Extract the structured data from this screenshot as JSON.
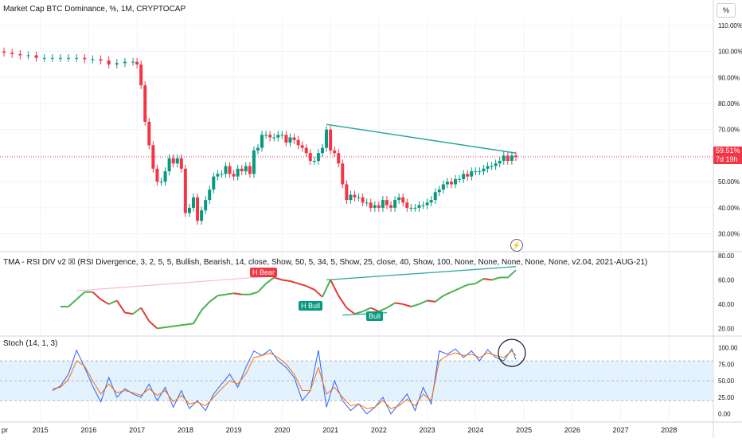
{
  "header": {
    "title": "Market Cap BTC Dominance, %, 1M, CRYPTOCAP",
    "scale_button": "%"
  },
  "price_axis": {
    "labels": [
      "110.00%",
      "100.00%",
      "90.00%",
      "80.00%",
      "70.00%",
      "60.00%",
      "50.00%",
      "40.00%",
      "30.00%"
    ],
    "current_value": "59.51%",
    "countdown": "7d 19h"
  },
  "rsi_pane": {
    "title": "TMA - RSI DIV v2 ☒ (RSI Divergence, 3, 2, 5, 5, Bullish, Bearish, 14, close, Show, 50, 5, 34, 5, Show, 25, close, 40, Show, 100, None, None, None, None, None, v2.04, 2021-AUG-21)",
    "axis_labels": [
      "80.00",
      "60.00",
      "40.00",
      "20.00"
    ],
    "labels": [
      "H Bear",
      "H Bull",
      "Bull"
    ]
  },
  "stoch_pane": {
    "title": "Stoch (14, 1, 3)",
    "axis_labels": [
      "100.00",
      "75.00",
      "50.00",
      "25.00",
      "0.00"
    ]
  },
  "time_axis": {
    "labels": [
      "pr",
      "2015",
      "2016",
      "2017",
      "2018",
      "2019",
      "2020",
      "2021",
      "2022",
      "2023",
      "2024",
      "2025",
      "2026",
      "2027",
      "2028"
    ]
  },
  "colors": {
    "up": "#089981",
    "down": "#f23645",
    "trendline": "#26a69a",
    "rsi_up": "#4caf50",
    "rsi_down": "#e53935",
    "stoch_k": "#2962ff",
    "stoch_d": "#ff6d00",
    "stoch_band": "#e3f2fd"
  },
  "chart_data": [
    {
      "type": "candlestick",
      "title": "Market Cap BTC Dominance, %, 1M, CRYPTOCAP",
      "ylim": [
        25,
        113
      ],
      "unit": "%",
      "price_line": 59.51,
      "x_range": [
        "2014-03",
        "2028-12"
      ],
      "x": [
        "2014-04",
        "2014-06",
        "2014-08",
        "2014-10",
        "2014-12",
        "2015-02",
        "2015-04",
        "2015-06",
        "2015-08",
        "2015-10",
        "2015-12",
        "2016-02",
        "2016-04",
        "2016-06",
        "2016-08",
        "2016-10",
        "2016-12",
        "2017-01",
        "2017-02",
        "2017-03",
        "2017-04",
        "2017-05",
        "2017-06",
        "2017-07",
        "2017-08",
        "2017-09",
        "2017-10",
        "2017-11",
        "2017-12",
        "2018-01",
        "2018-02",
        "2018-03",
        "2018-04",
        "2018-05",
        "2018-06",
        "2018-07",
        "2018-08",
        "2018-09",
        "2018-10",
        "2018-11",
        "2018-12",
        "2019-01",
        "2019-02",
        "2019-03",
        "2019-04",
        "2019-05",
        "2019-06",
        "2019-07",
        "2019-08",
        "2019-09",
        "2019-10",
        "2019-11",
        "2019-12",
        "2020-01",
        "2020-02",
        "2020-03",
        "2020-04",
        "2020-05",
        "2020-06",
        "2020-07",
        "2020-08",
        "2020-09",
        "2020-10",
        "2020-11",
        "2020-12",
        "2021-01",
        "2021-02",
        "2021-03",
        "2021-04",
        "2021-05",
        "2021-06",
        "2021-07",
        "2021-08",
        "2021-09",
        "2021-10",
        "2021-11",
        "2021-12",
        "2022-01",
        "2022-02",
        "2022-03",
        "2022-04",
        "2022-05",
        "2022-06",
        "2022-07",
        "2022-08",
        "2022-09",
        "2022-10",
        "2022-11",
        "2022-12",
        "2023-01",
        "2023-02",
        "2023-03",
        "2023-04",
        "2023-05",
        "2023-06",
        "2023-07",
        "2023-08",
        "2023-09",
        "2023-10",
        "2023-11",
        "2023-12",
        "2024-01",
        "2024-02",
        "2024-03",
        "2024-04",
        "2024-05",
        "2024-06",
        "2024-07",
        "2024-08",
        "2024-09",
        "2024-10",
        "2024-11"
      ],
      "close": [
        99.5,
        99,
        98.5,
        98.5,
        97.5,
        97.5,
        97.5,
        97.5,
        97.5,
        97.5,
        97,
        97,
        96.5,
        95,
        95.5,
        96,
        96,
        95,
        87,
        73,
        64,
        55,
        50,
        50,
        54,
        59,
        57,
        59,
        55,
        38,
        40,
        44,
        35,
        39,
        43,
        47,
        52,
        53,
        53,
        56,
        53,
        52,
        55,
        54,
        56,
        53,
        62,
        63,
        68,
        68,
        67,
        67,
        68,
        68,
        65,
        67,
        66,
        64,
        63,
        61,
        58,
        58,
        61,
        63,
        70,
        62,
        61,
        57,
        49,
        43,
        45,
        44,
        44,
        42,
        42,
        40,
        41,
        40,
        43,
        41,
        40,
        43,
        44,
        42,
        40,
        40,
        40,
        41,
        41,
        42,
        43,
        46,
        47,
        49,
        50,
        49,
        51,
        51,
        53,
        52,
        54,
        54,
        54,
        55,
        56,
        56,
        57,
        58,
        60,
        58,
        60,
        59.5
      ],
      "open": [
        100,
        99.5,
        99,
        98.5,
        98.5,
        97.5,
        97.5,
        97.5,
        97.5,
        97.5,
        97.5,
        97,
        97,
        96.5,
        95,
        95.5,
        96,
        96,
        95,
        87,
        73,
        64,
        55,
        50,
        50,
        54,
        59,
        57,
        59,
        55,
        38,
        40,
        44,
        35,
        39,
        43,
        47,
        52,
        53,
        53,
        56,
        53,
        52,
        55,
        54,
        56,
        53,
        62,
        63,
        68,
        68,
        67,
        67,
        68,
        68,
        65,
        67,
        66,
        64,
        63,
        61,
        58,
        58,
        61,
        63,
        70,
        62,
        61,
        57,
        49,
        43,
        45,
        44,
        44,
        42,
        42,
        40,
        41,
        40,
        43,
        41,
        40,
        43,
        44,
        42,
        40,
        40,
        40,
        41,
        41,
        42,
        43,
        46,
        47,
        49,
        50,
        49,
        51,
        51,
        53,
        52,
        54,
        54,
        54,
        55,
        56,
        56,
        57,
        58,
        60,
        58,
        60
      ],
      "annotations": [
        {
          "type": "trendline",
          "from": [
            "2020-12",
            72
          ],
          "to": [
            "2024-11",
            61
          ]
        }
      ]
    },
    {
      "type": "line",
      "title": "TMA - RSI DIV v2",
      "ylim": [
        15,
        82
      ],
      "x_range": [
        "2014-03",
        "2028-12"
      ],
      "x": [
        "2015-06",
        "2015-08",
        "2015-10",
        "2015-12",
        "2016-02",
        "2016-04",
        "2016-06",
        "2016-08",
        "2016-10",
        "2016-12",
        "2017-02",
        "2017-04",
        "2017-06",
        "2018-03",
        "2018-05",
        "2018-07",
        "2018-09",
        "2018-11",
        "2019-01",
        "2019-03",
        "2019-05",
        "2019-07",
        "2019-09",
        "2019-11",
        "2020-01",
        "2020-03",
        "2020-05",
        "2020-07",
        "2020-09",
        "2020-11",
        "2021-01",
        "2021-03",
        "2021-05",
        "2021-07",
        "2021-09",
        "2021-11",
        "2022-01",
        "2022-03",
        "2022-05",
        "2022-07",
        "2022-09",
        "2022-11",
        "2023-01",
        "2023-03",
        "2023-05",
        "2023-07",
        "2023-09",
        "2023-11",
        "2024-01",
        "2024-03",
        "2024-05",
        "2024-07",
        "2024-09",
        "2024-11"
      ],
      "y": [
        38,
        38,
        44,
        50,
        50,
        44,
        40,
        43,
        33,
        32,
        37,
        26,
        20,
        24,
        35,
        42,
        47,
        48,
        49,
        48,
        48,
        50,
        57,
        62,
        60,
        59,
        57,
        55,
        52,
        46,
        60,
        47,
        37,
        32,
        34,
        37,
        34,
        37,
        41,
        40,
        38,
        40,
        43,
        42,
        47,
        50,
        53,
        56,
        57,
        61,
        60,
        62,
        62,
        68
      ],
      "trendlines": [
        {
          "from": [
            "2020-12",
            60
          ],
          "to": [
            "2024-11",
            71
          ]
        },
        {
          "from": [
            "2015-10",
            51
          ],
          "to": [
            "2019-10",
            63
          ]
        },
        {
          "from": [
            "2021-04",
            31
          ],
          "to": [
            "2022-03",
            33
          ]
        }
      ],
      "labels": [
        {
          "text": "H Bear",
          "x": "2019-08",
          "y": 70
        },
        {
          "text": "H Bull",
          "x": "2020-09",
          "y": 35
        },
        {
          "text": "Bull",
          "x": "2022-03",
          "y": 27
        }
      ]
    },
    {
      "type": "line",
      "title": "Stoch (14, 1, 3)",
      "ylim": [
        -10,
        115
      ],
      "bands": [
        80,
        50,
        20
      ],
      "x_range": [
        "2014-03",
        "2028-12"
      ],
      "x": [
        "2015-04",
        "2015-06",
        "2015-08",
        "2015-10",
        "2015-12",
        "2016-02",
        "2016-04",
        "2016-06",
        "2016-08",
        "2016-10",
        "2016-12",
        "2017-02",
        "2017-04",
        "2017-06",
        "2017-08",
        "2017-10",
        "2017-12",
        "2018-02",
        "2018-04",
        "2018-06",
        "2018-08",
        "2018-10",
        "2018-12",
        "2019-02",
        "2019-04",
        "2019-06",
        "2019-08",
        "2019-10",
        "2019-12",
        "2020-02",
        "2020-04",
        "2020-06",
        "2020-08",
        "2020-10",
        "2020-12",
        "2021-02",
        "2021-04",
        "2021-06",
        "2021-08",
        "2021-10",
        "2021-12",
        "2022-02",
        "2022-04",
        "2022-06",
        "2022-08",
        "2022-10",
        "2022-12",
        "2023-02",
        "2023-04",
        "2023-06",
        "2023-08",
        "2023-10",
        "2023-12",
        "2024-02",
        "2024-04",
        "2024-06",
        "2024-08",
        "2024-10",
        "2024-11"
      ],
      "series": [
        {
          "values": [
            35,
            42,
            60,
            96,
            70,
            42,
            18,
            55,
            25,
            38,
            30,
            25,
            45,
            20,
            40,
            10,
            35,
            8,
            20,
            5,
            30,
            45,
            60,
            40,
            70,
            95,
            88,
            97,
            80,
            70,
            55,
            20,
            35,
            96,
            10,
            50,
            20,
            5,
            15,
            0,
            10,
            25,
            0,
            15,
            30,
            5,
            40,
            15,
            95,
            90,
            98,
            85,
            95,
            80,
            97,
            85,
            80,
            98,
            82
          ]
        },
        {
          "values": [
            38,
            40,
            52,
            80,
            72,
            50,
            30,
            45,
            32,
            35,
            32,
            28,
            38,
            28,
            35,
            18,
            28,
            15,
            18,
            12,
            25,
            38,
            50,
            45,
            60,
            85,
            88,
            92,
            85,
            75,
            60,
            35,
            35,
            70,
            30,
            40,
            25,
            12,
            15,
            8,
            10,
            20,
            8,
            12,
            22,
            12,
            30,
            20,
            80,
            88,
            92,
            88,
            90,
            85,
            92,
            88,
            85,
            95,
            88
          ]
        }
      ]
    }
  ]
}
